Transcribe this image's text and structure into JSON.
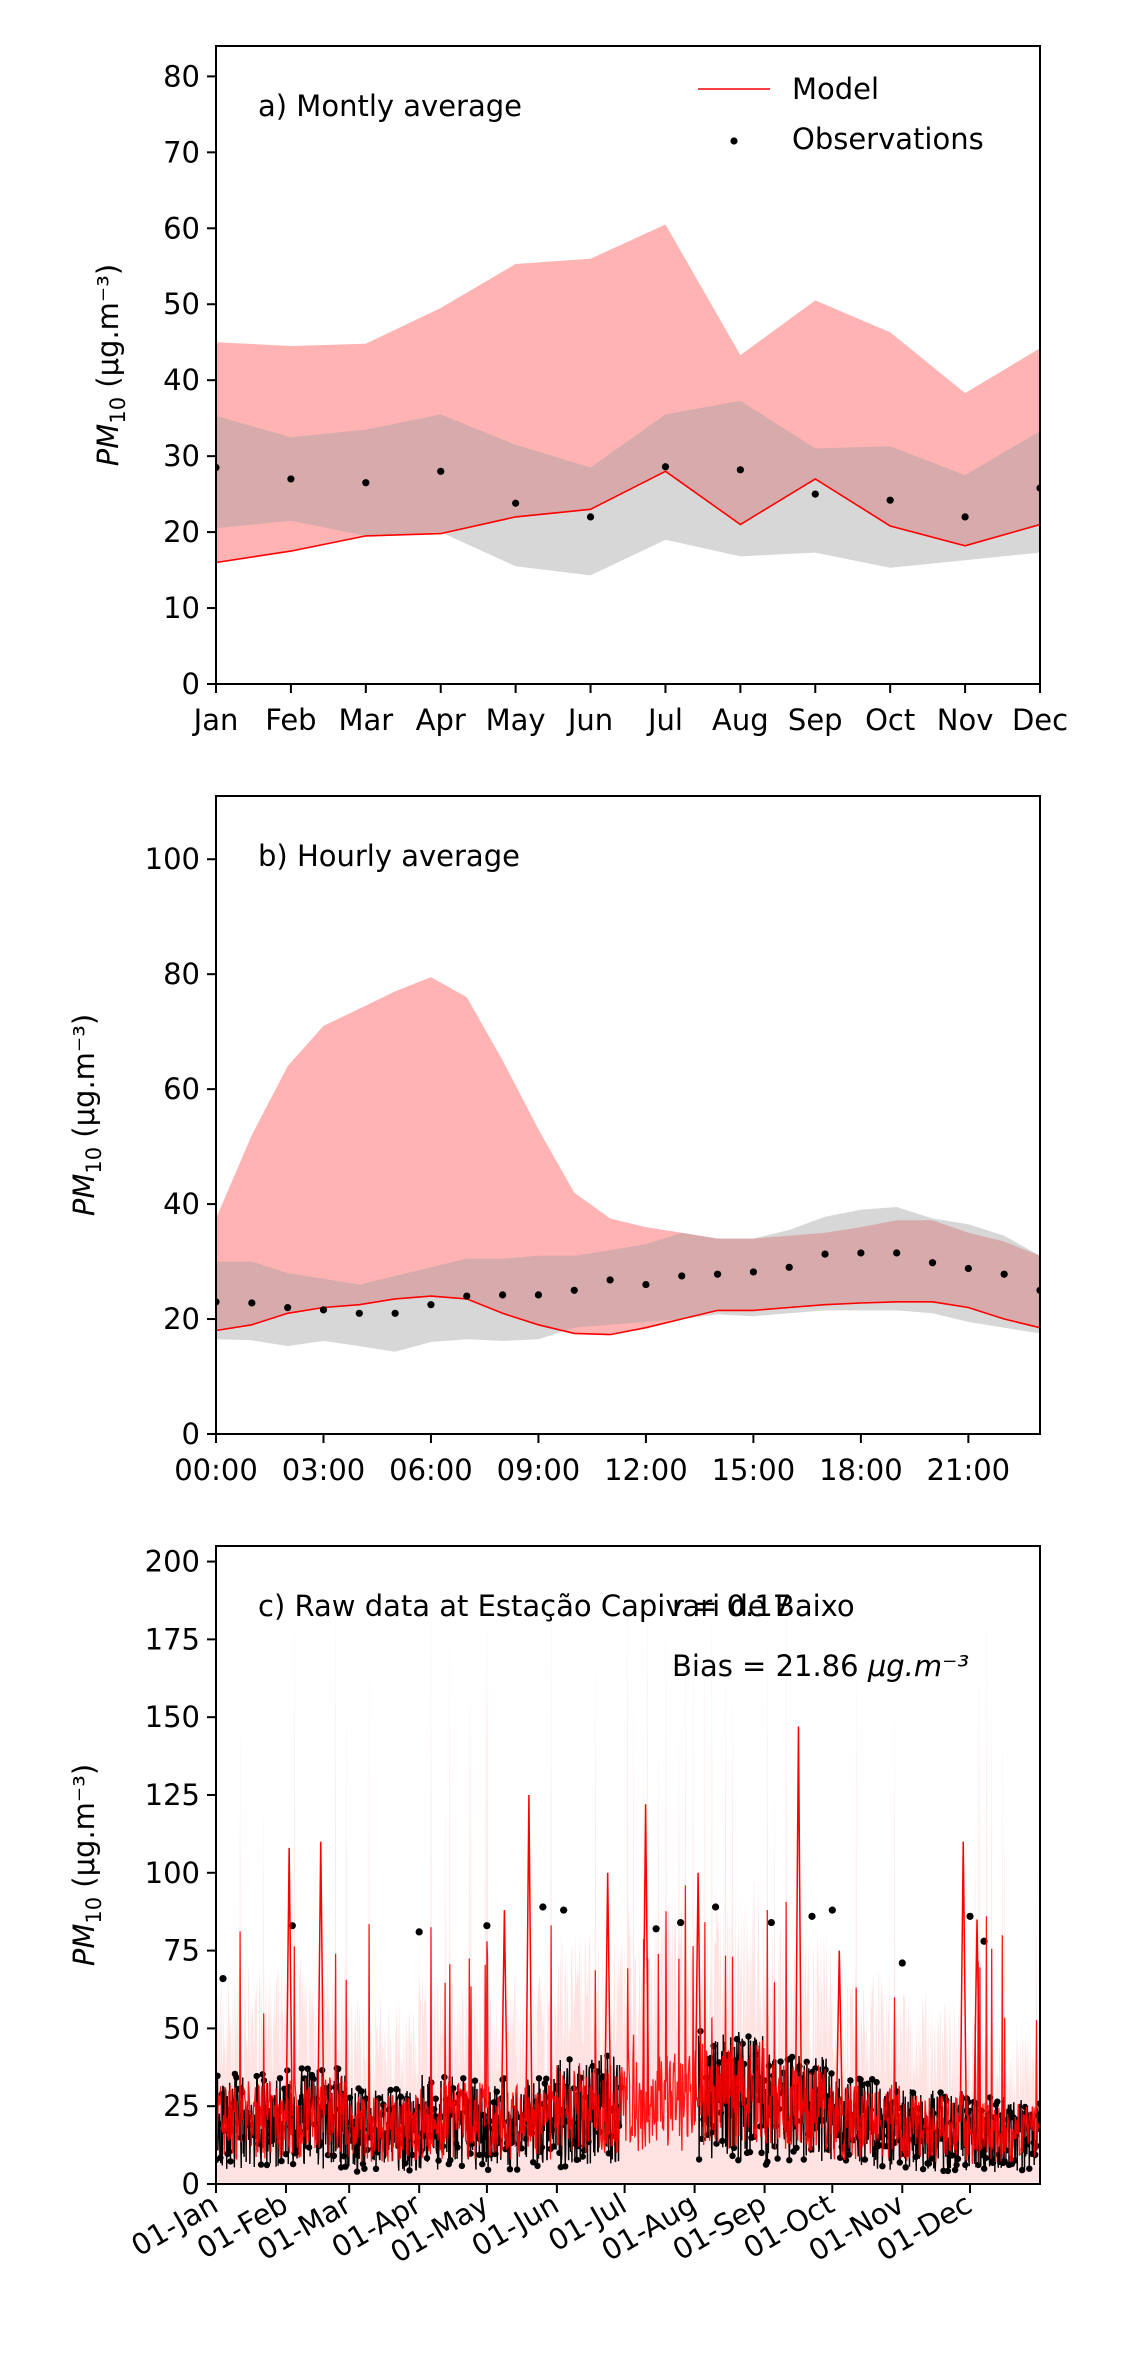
{
  "chart_data": [
    {
      "type": "area",
      "panel_label": "a) Montly average",
      "ylabel_base": "PM",
      "ylabel_sub": "10",
      "ylabel_unit": " (μg.m⁻³)",
      "ylim": [
        0,
        84
      ],
      "yticks": [
        0,
        10,
        20,
        30,
        40,
        50,
        60,
        70,
        80
      ],
      "categories": [
        "Jan",
        "Feb",
        "Mar",
        "Apr",
        "May",
        "Jun",
        "Jul",
        "Aug",
        "Sep",
        "Oct",
        "Nov",
        "Dec"
      ],
      "legend": {
        "model": "Model",
        "observations": "Observations",
        "placement": "top-right"
      },
      "colors": {
        "model_line": "#ff0000",
        "model_band": "#ffb3b3",
        "obs_band": "#d6d6d6",
        "overlap": "#d9a3a3",
        "obs_dot": "#000000"
      },
      "series": [
        {
          "name": "Model",
          "role": "model_line",
          "values": [
            16,
            17.5,
            19.5,
            19.8,
            22,
            23,
            28,
            21,
            27,
            20.8,
            18.2,
            21
          ]
        },
        {
          "name": "Observations",
          "role": "obs_points",
          "values": [
            28.5,
            27,
            26.5,
            28,
            23.8,
            22,
            28.6,
            28.2,
            25,
            24.2,
            22,
            25.8
          ]
        }
      ],
      "model_band": {
        "lower": [
          16,
          17.5,
          19.5,
          19.8,
          22,
          23,
          28,
          21,
          27,
          20.8,
          18.2,
          21
        ],
        "upper": [
          45,
          44.5,
          44.8,
          49.5,
          55.3,
          56,
          60.5,
          43.3,
          50.5,
          46.3,
          38.3,
          44.2
        ]
      },
      "obs_band": {
        "lower": [
          20.5,
          21.5,
          19.5,
          20,
          15.5,
          14.3,
          19,
          16.8,
          17.3,
          15.3,
          16.3,
          17.3
        ],
        "upper": [
          35.3,
          32.5,
          33.5,
          35.5,
          31.5,
          28.5,
          35.5,
          37.3,
          31,
          31.3,
          27.5,
          33.3
        ]
      }
    },
    {
      "type": "area",
      "panel_label": "b) Hourly average",
      "ylabel_base": "PM",
      "ylabel_sub": "10",
      "ylabel_unit": " (μg.m⁻³)",
      "ylim": [
        0,
        111
      ],
      "yticks": [
        0,
        20,
        40,
        60,
        80,
        100
      ],
      "x": [
        0,
        1,
        2,
        3,
        4,
        5,
        6,
        7,
        8,
        9,
        10,
        11,
        12,
        13,
        14,
        15,
        16,
        17,
        18,
        19,
        20,
        21,
        22,
        23
      ],
      "xlim": [
        0,
        23
      ],
      "xticks": [
        0,
        3,
        6,
        9,
        12,
        15,
        18,
        21
      ],
      "xtick_labels": [
        "00:00",
        "03:00",
        "06:00",
        "09:00",
        "12:00",
        "15:00",
        "18:00",
        "21:00"
      ],
      "colors": {
        "model_line": "#ff0000",
        "model_band": "#ffb3b3",
        "obs_band": "#d6d6d6",
        "overlap": "#d9a3a3",
        "obs_dot": "#000000"
      },
      "series": [
        {
          "name": "Model",
          "role": "model_line",
          "values": [
            18,
            19,
            21,
            22,
            22.5,
            23.5,
            24,
            23.5,
            21,
            19,
            17.5,
            17.3,
            18.5,
            20,
            21.5,
            21.5,
            22,
            22.5,
            22.8,
            23,
            23,
            22,
            20,
            18.5
          ]
        },
        {
          "name": "Observations",
          "role": "obs_points",
          "values": [
            23,
            22.8,
            22,
            21.6,
            21,
            21,
            22.5,
            24,
            24.2,
            24.2,
            25,
            26.8,
            26,
            27.5,
            27.8,
            28.2,
            29,
            31.3,
            31.5,
            31.5,
            29.8,
            28.8,
            27.8,
            25
          ]
        }
      ],
      "model_band": {
        "lower": [
          18,
          19,
          21,
          22,
          22.5,
          23.5,
          24,
          23.5,
          21,
          19,
          17.5,
          17.3,
          18.5,
          20,
          21.5,
          21.5,
          22,
          22.5,
          22.8,
          23,
          23,
          22,
          20,
          18.5
        ],
        "upper": [
          37.5,
          52,
          64,
          71,
          74,
          77,
          79.5,
          76,
          65,
          53,
          42,
          37.5,
          36,
          35,
          34,
          34,
          34.5,
          35,
          36,
          37.2,
          37.2,
          35,
          33.5,
          31
        ]
      },
      "obs_band": {
        "lower": [
          16.5,
          16.3,
          15.3,
          16.2,
          15.3,
          14.3,
          16,
          16.5,
          16.2,
          16.5,
          18.5,
          19,
          19.5,
          20,
          20.8,
          20.5,
          21,
          21.5,
          21.5,
          21.5,
          21,
          19.5,
          18.5,
          17.5
        ],
        "upper": [
          30,
          30,
          28,
          27,
          26,
          27.5,
          29,
          30.5,
          30.5,
          31,
          31,
          32,
          33,
          35,
          34,
          34,
          35.5,
          37.8,
          39,
          39.5,
          37.5,
          36.5,
          34.5,
          31
        ]
      }
    },
    {
      "type": "line",
      "panel_label": "c) Raw data at Estação Capivari de Baixo",
      "stat_r": "r = 0.17",
      "stat_bias": "Bias = 21.86 μg.m⁻³",
      "ylabel_base": "PM",
      "ylabel_sub": "10",
      "ylabel_unit": " (μg.m⁻³)",
      "ylim": [
        0,
        205
      ],
      "yticks": [
        0,
        25,
        50,
        75,
        100,
        125,
        150,
        175,
        200
      ],
      "xtick_labels": [
        "01-Jan",
        "01-Feb",
        "01-Mar",
        "01-Apr",
        "01-May",
        "01-Jun",
        "01-Jul",
        "01-Aug",
        "01-Sep",
        "01-Oct",
        "01-Nov",
        "01-Dec"
      ],
      "colors": {
        "model_line": "#ff0000",
        "model_band": "#ffcccc",
        "obs_dot": "#000000"
      },
      "monthly_base": [
        23,
        24,
        20,
        23,
        22,
        27,
        30,
        32,
        27,
        22,
        20,
        18
      ],
      "peaks": [
        {
          "month": 1.05,
          "value": 108
        },
        {
          "month": 1.55,
          "value": 110
        },
        {
          "month": 4.6,
          "value": 125
        },
        {
          "month": 4.25,
          "value": 88
        },
        {
          "month": 6.3,
          "value": 122
        },
        {
          "month": 8.5,
          "value": 147
        },
        {
          "month": 7.05,
          "value": 100
        },
        {
          "month": 10.9,
          "value": 110
        },
        {
          "month": 11.1,
          "value": 85
        },
        {
          "month": 5.75,
          "value": 100
        },
        {
          "month": 9.1,
          "value": 75
        }
      ],
      "obs_outliers": [
        {
          "month": 0.1,
          "value": 66
        },
        {
          "month": 1.1,
          "value": 83
        },
        {
          "month": 3.0,
          "value": 81
        },
        {
          "month": 4.0,
          "value": 83
        },
        {
          "month": 4.8,
          "value": 89
        },
        {
          "month": 5.1,
          "value": 88
        },
        {
          "month": 6.45,
          "value": 82
        },
        {
          "month": 6.8,
          "value": 84
        },
        {
          "month": 7.3,
          "value": 89
        },
        {
          "month": 8.1,
          "value": 84
        },
        {
          "month": 9.0,
          "value": 88
        },
        {
          "month": 8.7,
          "value": 86
        },
        {
          "month": 10.0,
          "value": 71
        },
        {
          "month": 11.0,
          "value": 86
        },
        {
          "month": 11.2,
          "value": 78
        }
      ]
    }
  ]
}
